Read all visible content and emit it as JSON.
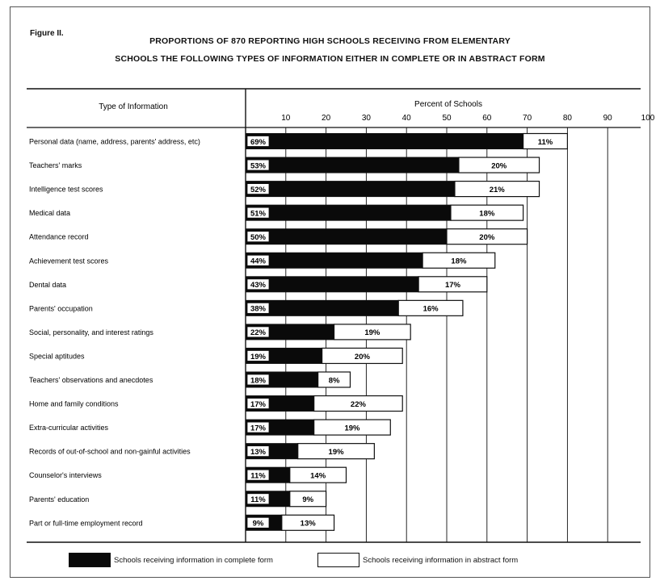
{
  "figure_label": "Figure II.",
  "title_line1": "PROPORTIONS OF 870 REPORTING HIGH SCHOOLS RECEIVING FROM ELEMENTARY",
  "title_line2": "SCHOOLS THE FOLLOWING TYPES OF INFORMATION EITHER IN COMPLETE OR IN ABSTRACT FORM",
  "category_header": "Type of Information",
  "legend": {
    "complete": "Schools receiving information in complete form",
    "abstract": "Schools receiving information in abstract form"
  },
  "colors": {
    "complete": "#0a0a0a",
    "abstract": "#ffffff",
    "line": "#111111"
  },
  "chart_data": {
    "type": "bar",
    "orientation": "horizontal",
    "stacked": true,
    "xlabel": "Percent of Schools",
    "xlim": [
      0,
      100
    ],
    "xticks": [
      10,
      20,
      30,
      40,
      50,
      60,
      70,
      80,
      90,
      100
    ],
    "grid": "vertical lines at ticks",
    "legend_position": "bottom",
    "categories": [
      "Personal data (name, address, parents' address, etc)",
      "Teachers' marks",
      "Intelligence test scores",
      "Medical data",
      "Attendance record",
      "Achievement test scores",
      "Dental data",
      "Parents' occupation",
      "Social, personality, and interest ratings",
      "Special aptitudes",
      "Teachers' observations and anecdotes",
      "Home and family conditions",
      "Extra-curricular activities",
      "Records of out-of-school and non-gainful activities",
      "Counselor's interviews",
      "Parents' education",
      "Part or full-time employment record"
    ],
    "series": [
      {
        "name": "Schools receiving information in complete form",
        "values": [
          69,
          53,
          52,
          51,
          50,
          44,
          43,
          38,
          22,
          19,
          18,
          17,
          17,
          13,
          11,
          11,
          9
        ],
        "labels": [
          "69%",
          "53%",
          "52%",
          "51%",
          "50%",
          "44%",
          "43%",
          "38%",
          "22%",
          "19%",
          "18%",
          "17%",
          "17%",
          "13%",
          "11%",
          "11%",
          "9%"
        ]
      },
      {
        "name": "Schools receiving information in abstract form",
        "values": [
          11,
          20,
          21,
          18,
          20,
          18,
          17,
          16,
          19,
          20,
          8,
          22,
          19,
          19,
          14,
          9,
          13
        ],
        "labels": [
          "11%",
          "20%",
          "21%",
          "18%",
          "20%",
          "18%",
          "17%",
          "16%",
          "19%",
          "20%",
          "8%",
          "22%",
          "19%",
          "19%",
          "14%",
          "9%",
          "13%"
        ]
      }
    ]
  }
}
